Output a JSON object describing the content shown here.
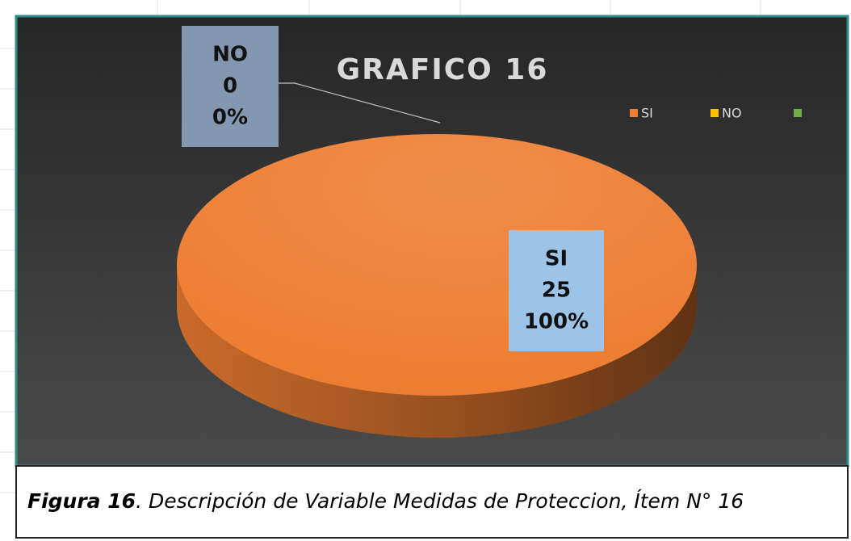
{
  "chart_data": {
    "type": "pie3d",
    "title": "GRAFICO 16",
    "categories": [
      "SI",
      "NO",
      null
    ],
    "values": [
      25,
      0,
      0
    ],
    "percentages": [
      100,
      0,
      0
    ],
    "percentage_labels": [
      "100%",
      "0%",
      null
    ],
    "colors": [
      "#ed7d31",
      "#ffc000",
      "#70ad47"
    ],
    "legend": "top-right",
    "caption": {
      "label": "Figura 16",
      "text": ". Descripción de Variable Medidas de Proteccion, Ítem N° 16"
    }
  }
}
